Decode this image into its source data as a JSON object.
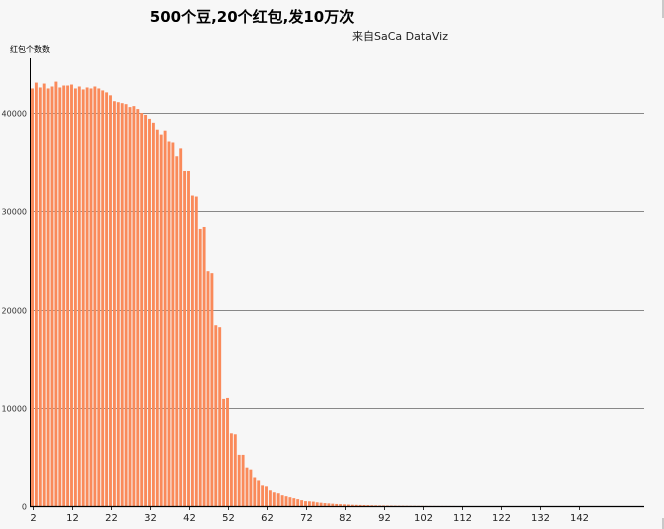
{
  "chart_data": {
    "type": "bar",
    "title": "500个豆,20个红包,发10万次",
    "subtitle": "来自SaCa DataViz",
    "ylabel": "红包个数数",
    "xlabel": "",
    "ylim": [
      0,
      45600
    ],
    "y_ticks": [
      0,
      10000,
      20000,
      30000,
      40000
    ],
    "x_tick_labels": [
      2,
      12,
      22,
      32,
      42,
      52,
      62,
      72,
      82,
      92,
      102,
      112,
      122,
      132,
      142
    ],
    "grid": true,
    "legend": "none",
    "bar_color": "#fa8a5a",
    "x": [
      2,
      3,
      4,
      5,
      6,
      7,
      8,
      9,
      10,
      11,
      12,
      13,
      14,
      15,
      16,
      17,
      18,
      19,
      20,
      21,
      22,
      23,
      24,
      25,
      26,
      27,
      28,
      29,
      30,
      31,
      32,
      33,
      34,
      35,
      36,
      37,
      38,
      39,
      40,
      41,
      42,
      43,
      44,
      45,
      46,
      47,
      48,
      49,
      50,
      51,
      52,
      53,
      54,
      55,
      56,
      57,
      58,
      59,
      60,
      61,
      62,
      63,
      64,
      65,
      66,
      67,
      68,
      69,
      70,
      71,
      72,
      73,
      74,
      75,
      76,
      77,
      78,
      79,
      80,
      81,
      82,
      83,
      84,
      85,
      86,
      87,
      88,
      89,
      90,
      91,
      92,
      93,
      94,
      95,
      96,
      97,
      98,
      99,
      100,
      101,
      102,
      103,
      104,
      105,
      106,
      107,
      108,
      109,
      110
    ],
    "values": [
      42500,
      43100,
      42600,
      43000,
      42500,
      42700,
      43200,
      42600,
      42800,
      42800,
      42900,
      42500,
      42700,
      42400,
      42600,
      42500,
      42700,
      42500,
      42300,
      42100,
      41800,
      41200,
      41100,
      41000,
      40900,
      40600,
      40700,
      40400,
      40000,
      39800,
      39400,
      39000,
      38300,
      37800,
      38200,
      37100,
      37000,
      35600,
      36400,
      34100,
      34100,
      31600,
      31500,
      28200,
      28400,
      23900,
      23700,
      18400,
      18200,
      10900,
      11000,
      7400,
      7300,
      5200,
      5200,
      3900,
      3700,
      2900,
      2600,
      2100,
      2000,
      1600,
      1400,
      1300,
      1100,
      1000,
      900,
      800,
      700,
      600,
      500,
      480,
      450,
      380,
      340,
      300,
      270,
      240,
      210,
      190,
      170,
      150,
      130,
      120,
      110,
      100,
      90,
      80,
      70,
      60,
      55,
      50,
      45,
      40,
      35,
      30,
      25,
      22,
      20,
      18,
      15,
      12,
      10,
      9,
      8,
      7,
      6,
      5,
      4
    ]
  }
}
